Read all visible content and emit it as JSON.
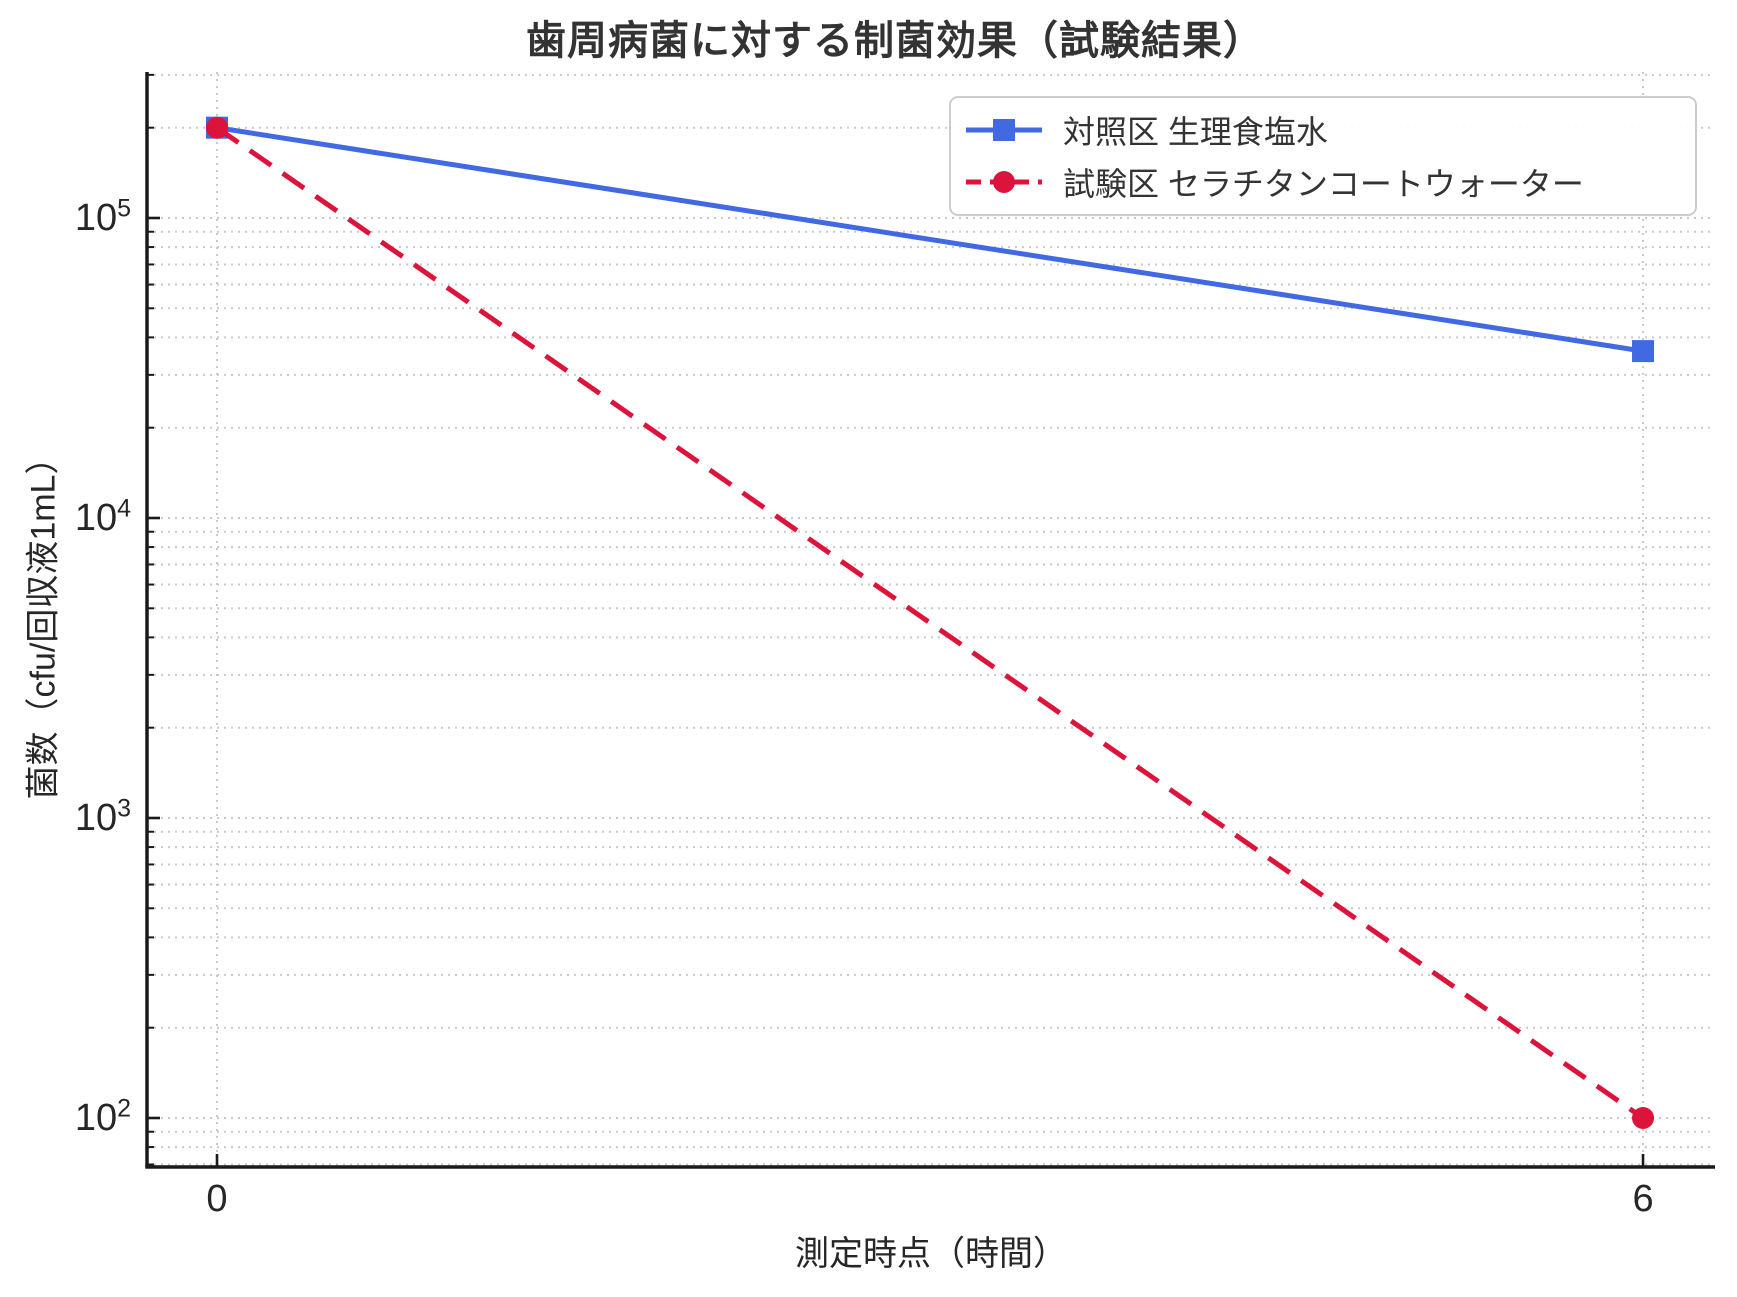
{
  "chart_data": {
    "type": "line",
    "title": "歯周病菌に対する制菌効果（試験結果）",
    "xlabel": "測定時点（時間）",
    "ylabel": "菌数（cfu/回収液1mL）",
    "x": [
      0,
      6
    ],
    "x_tick_labels": [
      "0",
      "6"
    ],
    "y_scale": "log10",
    "y_tick_exponents": [
      5,
      4,
      3,
      2
    ],
    "xlim": [
      -0.3,
      6.3
    ],
    "ylim": [
      68,
      307000
    ],
    "grid": {
      "style": "dotted",
      "color": "#c9c9c9",
      "horizontal": "log major and minor lines",
      "vertical": "at x tick positions"
    },
    "legend": {
      "position": "upper right",
      "border_color": "#cccccc",
      "background": "#ffffff"
    },
    "style": {
      "spine_color": "#1a1a1a",
      "text_color": "#333333",
      "tick_color": "#262626"
    },
    "series": [
      {
        "name": "対照区 生理食塩水",
        "color": "#4169e1",
        "marker": "square",
        "line_style": "solid",
        "x": [
          0,
          6
        ],
        "values": [
          200000,
          36000
        ]
      },
      {
        "name": "試験区 セラチタンコートウォーター",
        "color": "#dc143c",
        "marker": "circle",
        "line_style": "dashed",
        "x": [
          0,
          6
        ],
        "values": [
          200000,
          100
        ]
      }
    ]
  }
}
